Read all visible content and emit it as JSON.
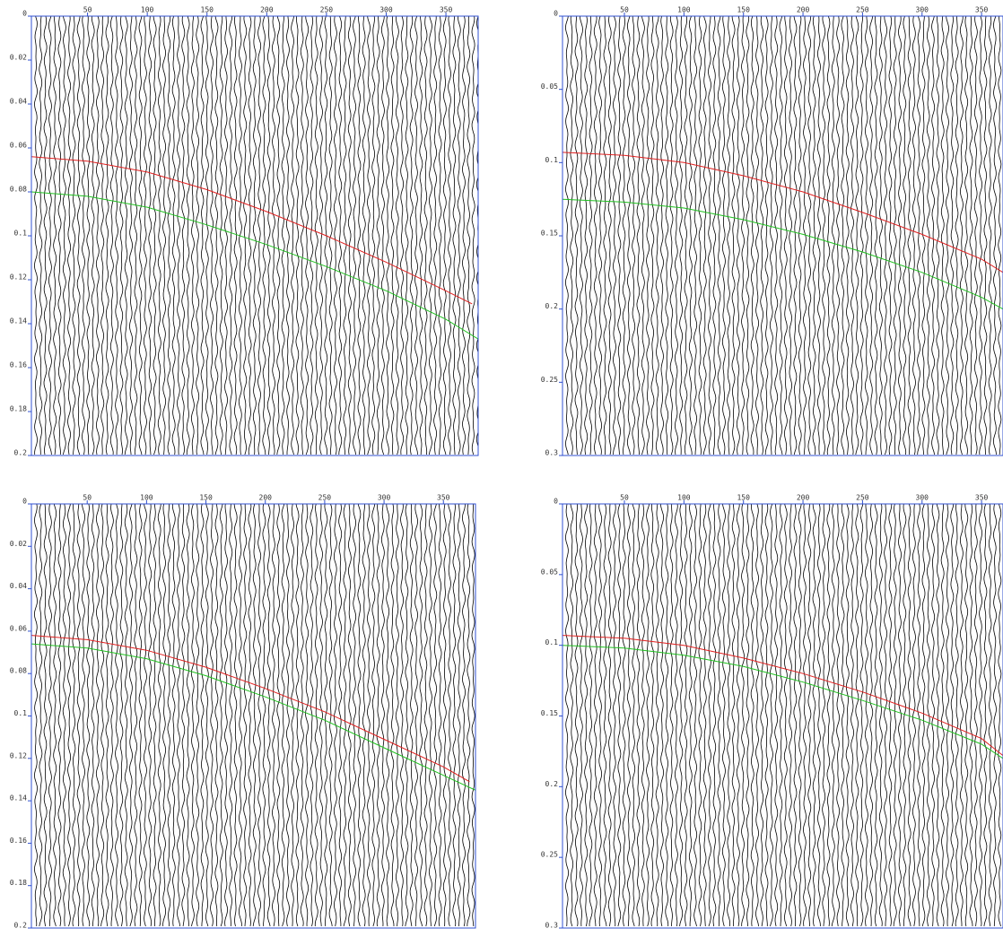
{
  "chart_data": [
    {
      "type": "line",
      "xlim": [
        3,
        377
      ],
      "xticks": [
        50,
        100,
        150,
        200,
        250,
        300,
        350
      ],
      "ylim": [
        0,
        0.2
      ],
      "yticks": [
        0,
        0.02,
        0.04,
        0.06,
        0.08,
        0.1,
        0.12,
        0.14,
        0.16,
        0.18,
        0.2
      ],
      "series": [
        {
          "color": "#e02020",
          "x": [
            3,
            50,
            100,
            150,
            200,
            250,
            300,
            350,
            372
          ],
          "values": [
            0.064,
            0.066,
            0.071,
            0.079,
            0.089,
            0.1,
            0.112,
            0.125,
            0.131
          ]
        },
        {
          "color": "#20c020",
          "x": [
            3,
            50,
            100,
            150,
            200,
            250,
            300,
            350,
            377
          ],
          "values": [
            0.08,
            0.082,
            0.087,
            0.095,
            0.104,
            0.114,
            0.125,
            0.138,
            0.147
          ]
        }
      ]
    },
    {
      "type": "line",
      "xlim": [
        -2,
        368
      ],
      "xticks": [
        50,
        100,
        150,
        200,
        250,
        300,
        350
      ],
      "ylim": [
        0,
        0.3
      ],
      "yticks": [
        0,
        0.05,
        0.1,
        0.15,
        0.2,
        0.25,
        0.3
      ],
      "series": [
        {
          "color": "#e02020",
          "x": [
            -2,
            50,
            100,
            150,
            200,
            250,
            300,
            350,
            368
          ],
          "values": [
            0.093,
            0.095,
            0.1,
            0.109,
            0.12,
            0.134,
            0.149,
            0.166,
            0.175
          ]
        },
        {
          "color": "#20c020",
          "x": [
            -2,
            50,
            100,
            150,
            200,
            250,
            300,
            350,
            368
          ],
          "values": [
            0.125,
            0.127,
            0.131,
            0.139,
            0.149,
            0.161,
            0.175,
            0.192,
            0.2
          ]
        }
      ]
    },
    {
      "type": "line",
      "xlim": [
        3,
        377
      ],
      "xticks": [
        50,
        100,
        150,
        200,
        250,
        300,
        350
      ],
      "ylim": [
        0,
        0.2
      ],
      "yticks": [
        0,
        0.02,
        0.04,
        0.06,
        0.08,
        0.1,
        0.12,
        0.14,
        0.16,
        0.18,
        0.2
      ],
      "series": [
        {
          "color": "#e02020",
          "x": [
            3,
            50,
            100,
            150,
            200,
            250,
            300,
            350,
            372
          ],
          "values": [
            0.062,
            0.064,
            0.069,
            0.077,
            0.087,
            0.098,
            0.111,
            0.124,
            0.131
          ]
        },
        {
          "color": "#20c020",
          "x": [
            3,
            50,
            100,
            150,
            200,
            250,
            300,
            350,
            377
          ],
          "values": [
            0.066,
            0.068,
            0.073,
            0.081,
            0.091,
            0.102,
            0.115,
            0.128,
            0.135
          ]
        }
      ]
    },
    {
      "type": "line",
      "xlim": [
        -2,
        368
      ],
      "xticks": [
        50,
        100,
        150,
        200,
        250,
        300,
        350
      ],
      "ylim": [
        0,
        0.3
      ],
      "yticks": [
        0,
        0.05,
        0.1,
        0.15,
        0.2,
        0.25,
        0.3
      ],
      "series": [
        {
          "color": "#e02020",
          "x": [
            -2,
            50,
            100,
            150,
            200,
            250,
            300,
            350,
            368
          ],
          "values": [
            0.093,
            0.095,
            0.1,
            0.109,
            0.12,
            0.133,
            0.148,
            0.166,
            0.178
          ]
        },
        {
          "color": "#20c020",
          "x": [
            -2,
            50,
            100,
            150,
            200,
            250,
            300,
            350,
            368
          ],
          "values": [
            0.1,
            0.102,
            0.107,
            0.115,
            0.126,
            0.139,
            0.153,
            0.17,
            0.18
          ]
        }
      ]
    }
  ]
}
